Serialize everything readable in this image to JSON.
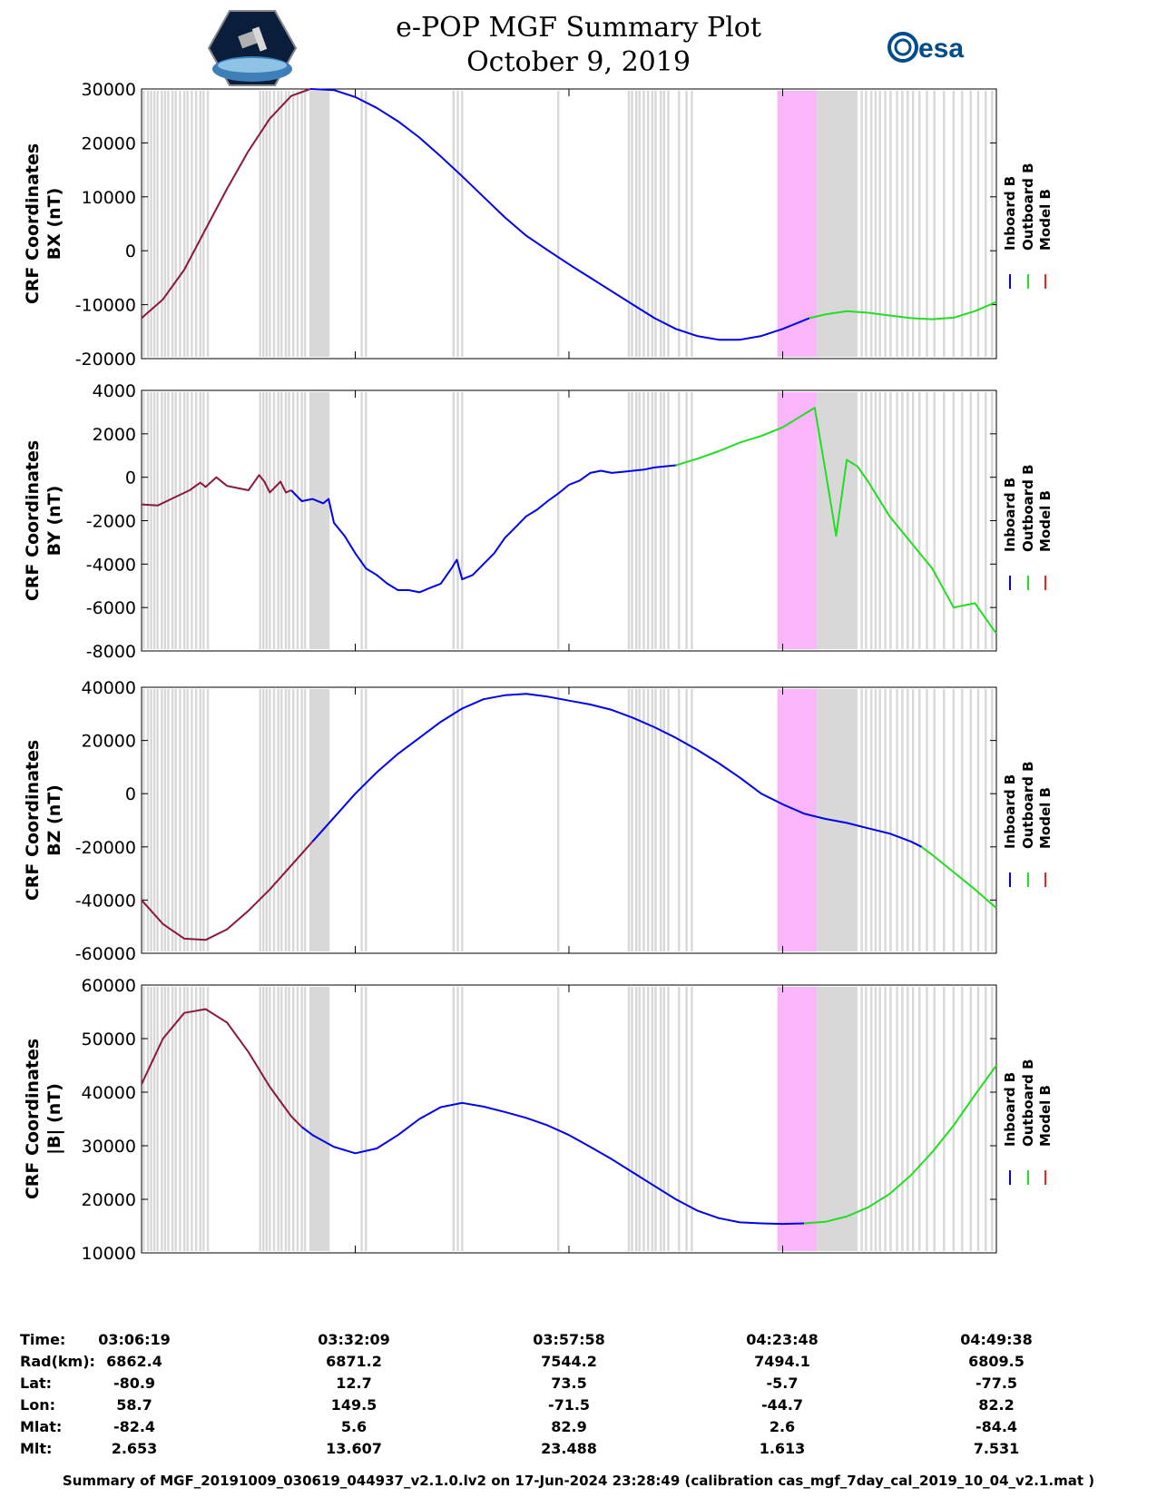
{
  "header": {
    "title": "e-POP MGF Summary Plot",
    "date": "October 9, 2019",
    "logo_left": "CASSIOPE mission logo",
    "logo_right_text": "esa"
  },
  "legend": {
    "entries": [
      "Inboard B",
      "Outboard B",
      "Model B"
    ],
    "colors": [
      "#0000ee",
      "#22dd22",
      "#ee2222"
    ]
  },
  "chart_data": [
    {
      "type": "line",
      "panel": "BX",
      "ylabel_line1": "CRF Coordinates",
      "ylabel_line2": "BX (nT)",
      "ylim": [
        -20000,
        30000
      ],
      "yticks": [
        -20000,
        -10000,
        0,
        10000,
        20000,
        30000
      ],
      "ytick_labels": [
        "-20000",
        "-10000",
        "0",
        "10000",
        "20000",
        "30000"
      ],
      "series": [
        {
          "name": "Model B",
          "color": "#8b1a3a",
          "x": [
            0,
            2,
            4,
            6,
            8,
            10,
            12,
            14,
            15.8
          ],
          "y": [
            -12500,
            -9000,
            -3500,
            4000,
            11500,
            18500,
            24500,
            28700,
            30000
          ]
        },
        {
          "name": "Inboard B",
          "color": "#0000ee",
          "x": [
            15.8,
            18,
            20,
            22,
            24,
            26,
            28,
            30,
            32,
            34,
            36,
            38,
            40,
            42,
            44,
            46,
            48,
            50,
            52,
            54,
            56,
            58,
            60,
            62.5
          ],
          "y": [
            30000,
            29800,
            28500,
            26500,
            24000,
            21000,
            17500,
            13800,
            10000,
            6200,
            2800,
            100,
            -2500,
            -5000,
            -7500,
            -10000,
            -12500,
            -14500,
            -15800,
            -16500,
            -16500,
            -15800,
            -14500,
            -12500
          ]
        },
        {
          "name": "Outboard B",
          "color": "#22dd22",
          "x": [
            62.5,
            64,
            66,
            68,
            70,
            72,
            74,
            76,
            78,
            80
          ],
          "y": [
            -12500,
            -11800,
            -11200,
            -11500,
            -12000,
            -12500,
            -12700,
            -12400,
            -11200,
            -9500
          ]
        }
      ]
    },
    {
      "type": "line",
      "panel": "BY",
      "ylabel_line1": "CRF Coordinates",
      "ylabel_line2": "BY (nT)",
      "ylim": [
        -8000,
        4000
      ],
      "yticks": [
        -8000,
        -6000,
        -4000,
        -2000,
        0,
        2000,
        4000
      ],
      "ytick_labels": [
        "-8000",
        "-6000",
        "-4000",
        "-2000",
        "0",
        "2000",
        "4000"
      ],
      "series": [
        {
          "name": "Model B",
          "color": "#8b1a3a",
          "x": [
            0,
            1.5,
            3,
            4.5,
            5.5,
            6,
            7,
            8,
            9,
            10,
            11,
            11.5,
            12,
            13,
            13.5,
            14
          ],
          "y": [
            -1250,
            -1300,
            -950,
            -600,
            -250,
            -450,
            0,
            -400,
            -500,
            -600,
            100,
            -200,
            -700,
            -200,
            -700,
            -600
          ]
        },
        {
          "name": "Inboard B",
          "color": "#0000ee",
          "x": [
            14,
            15,
            16,
            17,
            17.5,
            18,
            19,
            20,
            21,
            22,
            23,
            24,
            25,
            26,
            27,
            28,
            29,
            29.5,
            30,
            31,
            32,
            33,
            34,
            35,
            36,
            37,
            38,
            39,
            40,
            41,
            42,
            43,
            44,
            45,
            46,
            47,
            48,
            50
          ],
          "y": [
            -600,
            -1100,
            -1000,
            -1200,
            -1000,
            -2100,
            -2700,
            -3500,
            -4200,
            -4500,
            -4900,
            -5200,
            -5200,
            -5300,
            -5100,
            -4900,
            -4200,
            -3800,
            -4700,
            -4500,
            -4000,
            -3500,
            -2800,
            -2300,
            -1800,
            -1500,
            -1100,
            -750,
            -350,
            -150,
            200,
            300,
            200,
            250,
            300,
            350,
            450,
            550
          ]
        },
        {
          "name": "Outboard B",
          "color": "#22dd22",
          "x": [
            50,
            52,
            54,
            56,
            58,
            60,
            62,
            63,
            64,
            65,
            66,
            67,
            68,
            69,
            70,
            72,
            74,
            76,
            78,
            80
          ],
          "y": [
            550,
            850,
            1200,
            1600,
            1900,
            2300,
            2900,
            3200,
            300,
            -2700,
            800,
            500,
            -200,
            -1000,
            -1800,
            -3000,
            -4200,
            -6000,
            -5800,
            -7200
          ]
        }
      ]
    },
    {
      "type": "line",
      "panel": "BZ",
      "ylabel_line1": "CRF Coordinates",
      "ylabel_line2": "BZ (nT)",
      "ylim": [
        -60000,
        40000
      ],
      "yticks": [
        -60000,
        -40000,
        -20000,
        0,
        20000,
        40000
      ],
      "ytick_labels": [
        "-60000",
        "-40000",
        "-20000",
        "0",
        "20000",
        "40000"
      ],
      "series": [
        {
          "name": "Model B",
          "color": "#8b1a3a",
          "x": [
            0,
            2,
            4,
            6,
            8,
            10,
            12,
            14,
            16
          ],
          "y": [
            -40000,
            -49000,
            -54500,
            -55000,
            -51000,
            -44000,
            -36000,
            -27000,
            -18000
          ]
        },
        {
          "name": "Inboard B",
          "color": "#0000ee",
          "x": [
            16,
            18,
            20,
            22,
            24,
            26,
            28,
            30,
            32,
            34,
            36,
            38,
            40,
            42,
            44,
            46,
            48,
            50,
            52,
            54,
            56,
            58,
            60,
            62,
            64,
            66,
            68,
            70,
            72,
            73
          ],
          "y": [
            -18000,
            -9000,
            0,
            8000,
            15000,
            21000,
            27000,
            32000,
            35500,
            37000,
            37500,
            36500,
            35000,
            33500,
            31500,
            28500,
            25000,
            21000,
            16500,
            11500,
            6000,
            0,
            -4000,
            -7500,
            -9500,
            -11000,
            -13000,
            -15000,
            -18000,
            -20000
          ]
        },
        {
          "name": "Outboard B",
          "color": "#22dd22",
          "x": [
            73,
            74,
            76,
            78,
            80
          ],
          "y": [
            -20000,
            -23000,
            -29500,
            -36000,
            -43000
          ]
        }
      ]
    },
    {
      "type": "line",
      "panel": "|B|",
      "ylabel_line1": "CRF Coordinates",
      "ylabel_line2": "|B| (nT)",
      "ylim": [
        10000,
        60000
      ],
      "yticks": [
        10000,
        20000,
        30000,
        40000,
        50000,
        60000
      ],
      "ytick_labels": [
        "10000",
        "20000",
        "30000",
        "40000",
        "50000",
        "60000"
      ],
      "series": [
        {
          "name": "Model B",
          "color": "#8b1a3a",
          "x": [
            0,
            2,
            4,
            6,
            8,
            10,
            12,
            14,
            15
          ],
          "y": [
            41500,
            50000,
            54800,
            55500,
            53000,
            47500,
            41000,
            35500,
            33500
          ]
        },
        {
          "name": "Inboard B",
          "color": "#0000ee",
          "x": [
            15,
            16,
            18,
            20,
            22,
            24,
            26,
            28,
            30,
            32,
            34,
            36,
            38,
            40,
            42,
            44,
            46,
            48,
            50,
            52,
            54,
            56,
            58,
            60,
            62
          ],
          "y": [
            33500,
            32000,
            29800,
            28600,
            29500,
            32000,
            35000,
            37200,
            38000,
            37300,
            36300,
            35200,
            33800,
            32000,
            29800,
            27500,
            25000,
            22500,
            20000,
            17900,
            16500,
            15700,
            15500,
            15400,
            15500
          ]
        },
        {
          "name": "Outboard B",
          "color": "#22dd22",
          "x": [
            62,
            64,
            66,
            68,
            70,
            72,
            74,
            76,
            78,
            80
          ],
          "y": [
            15500,
            15800,
            16800,
            18500,
            21000,
            24500,
            28800,
            33800,
            39500,
            45000
          ]
        }
      ]
    }
  ],
  "x_axis": {
    "xlim": [
      0,
      80
    ],
    "tick_positions": [
      0,
      20,
      40,
      60,
      80
    ]
  },
  "shading": {
    "gray_gap_color": "#d8d8d8",
    "magenta_color": "#f9b6f9",
    "gray_bands": [
      [
        15.7,
        17.6
      ],
      [
        63.2,
        67.0
      ]
    ],
    "magenta_band": [
      59.5,
      63.2
    ],
    "gray_line_positions": [
      0.2,
      0.6,
      0.9,
      1.2,
      1.5,
      1.9,
      2.2,
      2.5,
      2.9,
      3.2,
      3.6,
      4.0,
      4.3,
      4.7,
      5.1,
      5.5,
      5.8,
      6.2,
      11.1,
      11.4,
      11.7,
      12.0,
      12.4,
      12.8,
      13.1,
      13.5,
      13.8,
      14.2,
      14.6,
      15.0,
      15.3,
      20.6,
      21.0,
      29.2,
      29.6,
      30.0,
      39.0,
      45.6,
      45.9,
      46.3,
      46.6,
      47.0,
      47.4,
      47.8,
      48.1,
      48.6,
      48.9,
      49.3,
      50.3,
      51.0,
      51.5,
      67.4,
      67.8,
      68.3,
      68.7,
      69.1,
      69.6,
      70.1,
      70.7,
      71.2,
      71.7,
      72.2,
      72.8,
      73.5,
      74.2,
      75.1,
      76.0,
      76.8,
      77.6,
      78.3,
      79.0,
      79.6
    ]
  },
  "footer": {
    "row_labels": [
      "Time:",
      "Rad(km):",
      "Lat:",
      "Lon:",
      "Mlat:",
      "Mlt:"
    ],
    "columns": [
      [
        "03:06:19",
        "6862.4",
        "-80.9",
        "58.7",
        "-82.4",
        "2.653"
      ],
      [
        "03:32:09",
        "6871.2",
        "12.7",
        "149.5",
        "5.6",
        "13.607"
      ],
      [
        "03:57:58",
        "7544.2",
        "73.5",
        "-71.5",
        "82.9",
        "23.488"
      ],
      [
        "04:23:48",
        "7494.1",
        "-5.7",
        "-44.7",
        "2.6",
        "1.613"
      ],
      [
        "04:49:38",
        "6809.5",
        "-77.5",
        "82.2",
        "-84.4",
        "7.531"
      ]
    ],
    "caption": "Summary of MGF_20191009_030619_044937_v2.1.0.lv2 on 17-Jun-2024 23:28:49 (calibration cas_mgf_7day_cal_2019_10_04_v2.1.mat )"
  }
}
